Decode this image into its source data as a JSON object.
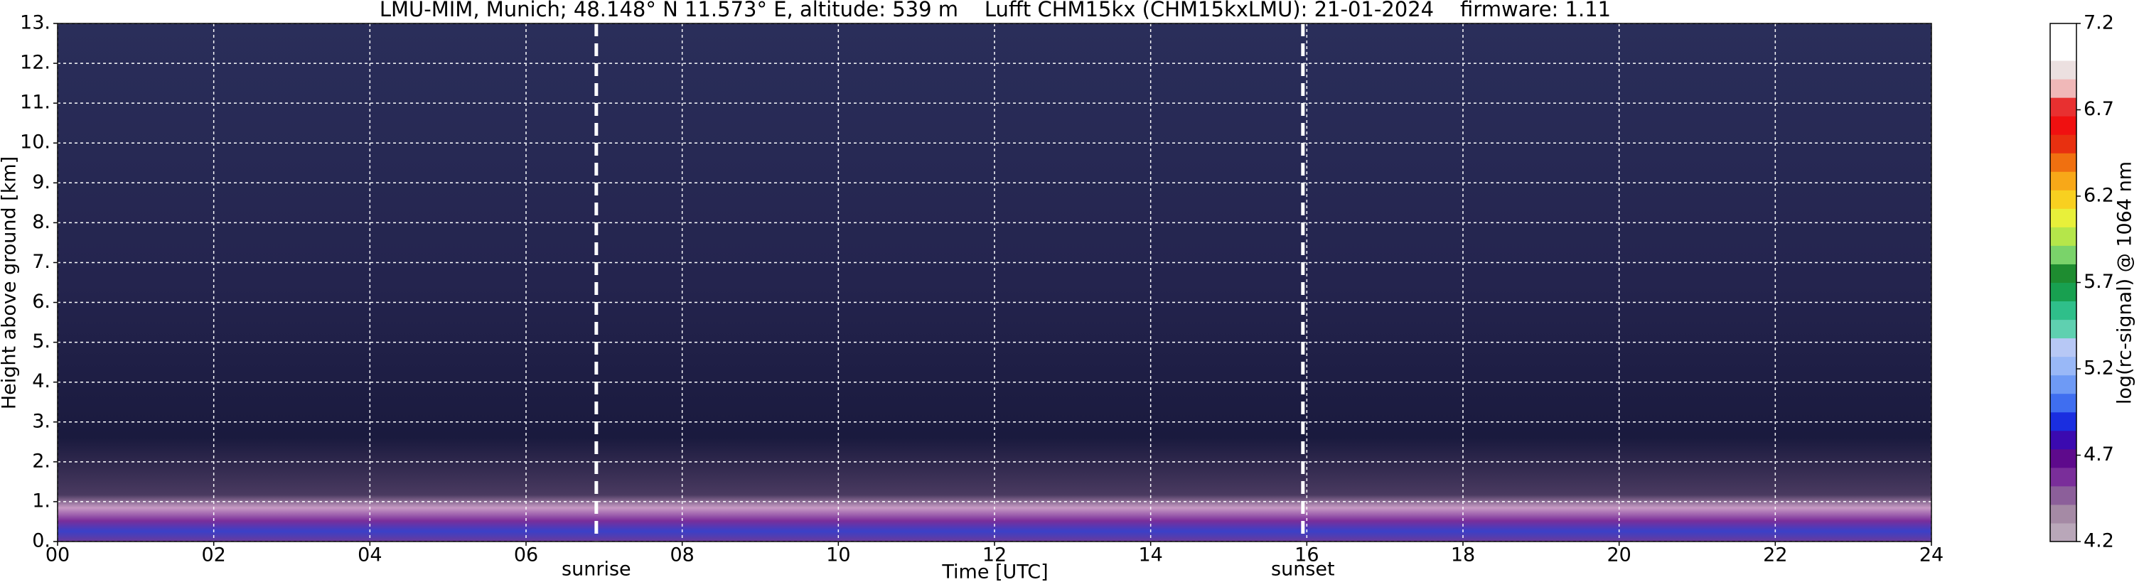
{
  "chart_data": {
    "type": "heatmap",
    "title": "LMU-MIM, Munich; 48.148° N 11.573° E, altitude: 539 m    Lufft CHM15kx (CHM15kxLMU): 21-01-2024    firmware: 1.11",
    "x_label": "Time [UTC]",
    "y_label": "Height above ground [km]",
    "xlim": [
      0,
      24
    ],
    "ylim": [
      0,
      13
    ],
    "xticks": [
      {
        "value": 0,
        "label": "00"
      },
      {
        "value": 2,
        "label": "02"
      },
      {
        "value": 4,
        "label": "04"
      },
      {
        "value": 6,
        "label": "06"
      },
      {
        "value": 8,
        "label": "08"
      },
      10,
      12,
      14,
      16,
      18,
      20,
      22,
      24
    ],
    "yticks": [
      {
        "value": 0,
        "label": "0."
      },
      {
        "value": 1,
        "label": "1."
      },
      {
        "value": 2,
        "label": "2."
      },
      {
        "value": 3,
        "label": "3."
      },
      {
        "value": 4,
        "label": "4."
      },
      {
        "value": 5,
        "label": "5."
      },
      {
        "value": 6,
        "label": "6."
      },
      {
        "value": 7,
        "label": "7."
      },
      {
        "value": 8,
        "label": "8."
      },
      {
        "value": 9,
        "label": "9."
      },
      {
        "value": 10,
        "label": "10."
      },
      {
        "value": 11,
        "label": "11."
      },
      {
        "value": 12,
        "label": "12."
      },
      {
        "value": 13,
        "label": "13."
      }
    ],
    "grid": true,
    "annotations": [
      {
        "x": 6.9,
        "label": "sunrise"
      },
      {
        "x": 15.95,
        "label": "sunset"
      }
    ],
    "colorbar": {
      "label": "log(rc-signal) @ 1064 nm",
      "lim": [
        4.2,
        7.2
      ],
      "ticks": [
        4.2,
        4.7,
        5.2,
        5.7,
        6.2,
        6.7,
        7.2
      ],
      "colors": [
        "#b9a7b9",
        "#a58aa5",
        "#8c5f9a",
        "#7a2e9a",
        "#5e0a8c",
        "#3b0ab0",
        "#1a2ee0",
        "#3f6ef0",
        "#6e9af5",
        "#99b8f7",
        "#b7c8f5",
        "#5fd0b0",
        "#2fbf8a",
        "#18a050",
        "#1e8c30",
        "#7ad36a",
        "#b5e64a",
        "#e8f03a",
        "#f8d020",
        "#f8a818",
        "#f07010",
        "#e83010",
        "#f01010",
        "#e83030",
        "#f0b8b8",
        "#ece0e0",
        "#ffffff",
        "#ffffff"
      ]
    }
  }
}
